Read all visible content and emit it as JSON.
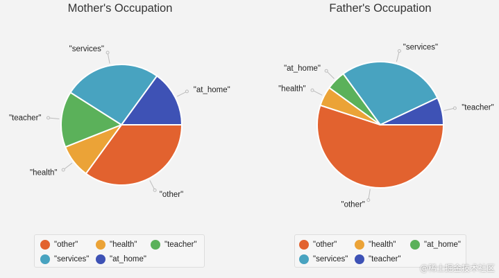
{
  "chart_data": [
    {
      "type": "pie",
      "title": "Mother's Occupation",
      "slices": [
        {
          "label": "\"other\"",
          "value": 35.0,
          "color": "#e2622f"
        },
        {
          "label": "\"health\"",
          "value": 9.0,
          "color": "#eba337"
        },
        {
          "label": "\"teacher\"",
          "value": 15.0,
          "color": "#5bb15a"
        },
        {
          "label": "\"services\"",
          "value": 26.0,
          "color": "#48a3c0"
        },
        {
          "label": "\"at_home\"",
          "value": 15.0,
          "color": "#3e52b5"
        }
      ],
      "legend": {
        "placement": "bottom",
        "items": [
          "\"other\"",
          "\"health\"",
          "\"teacher\"",
          "\"services\"",
          "\"at_home\""
        ]
      }
    },
    {
      "type": "pie",
      "title": "Father's Occupation",
      "slices": [
        {
          "label": "\"other\"",
          "value": 55.0,
          "color": "#e2622f"
        },
        {
          "label": "\"health\"",
          "value": 5.0,
          "color": "#eba337"
        },
        {
          "label": "\"at_home\"",
          "value": 5.0,
          "color": "#5bb15a"
        },
        {
          "label": "\"services\"",
          "value": 28.0,
          "color": "#48a3c0"
        },
        {
          "label": "\"teacher\"",
          "value": 7.0,
          "color": "#3e52b5"
        }
      ],
      "legend": {
        "placement": "bottom",
        "items": [
          "\"other\"",
          "\"health\"",
          "\"at_home\"",
          "\"services\"",
          "\"teacher\""
        ]
      }
    }
  ],
  "watermark": "@稀土掘金技术社区"
}
